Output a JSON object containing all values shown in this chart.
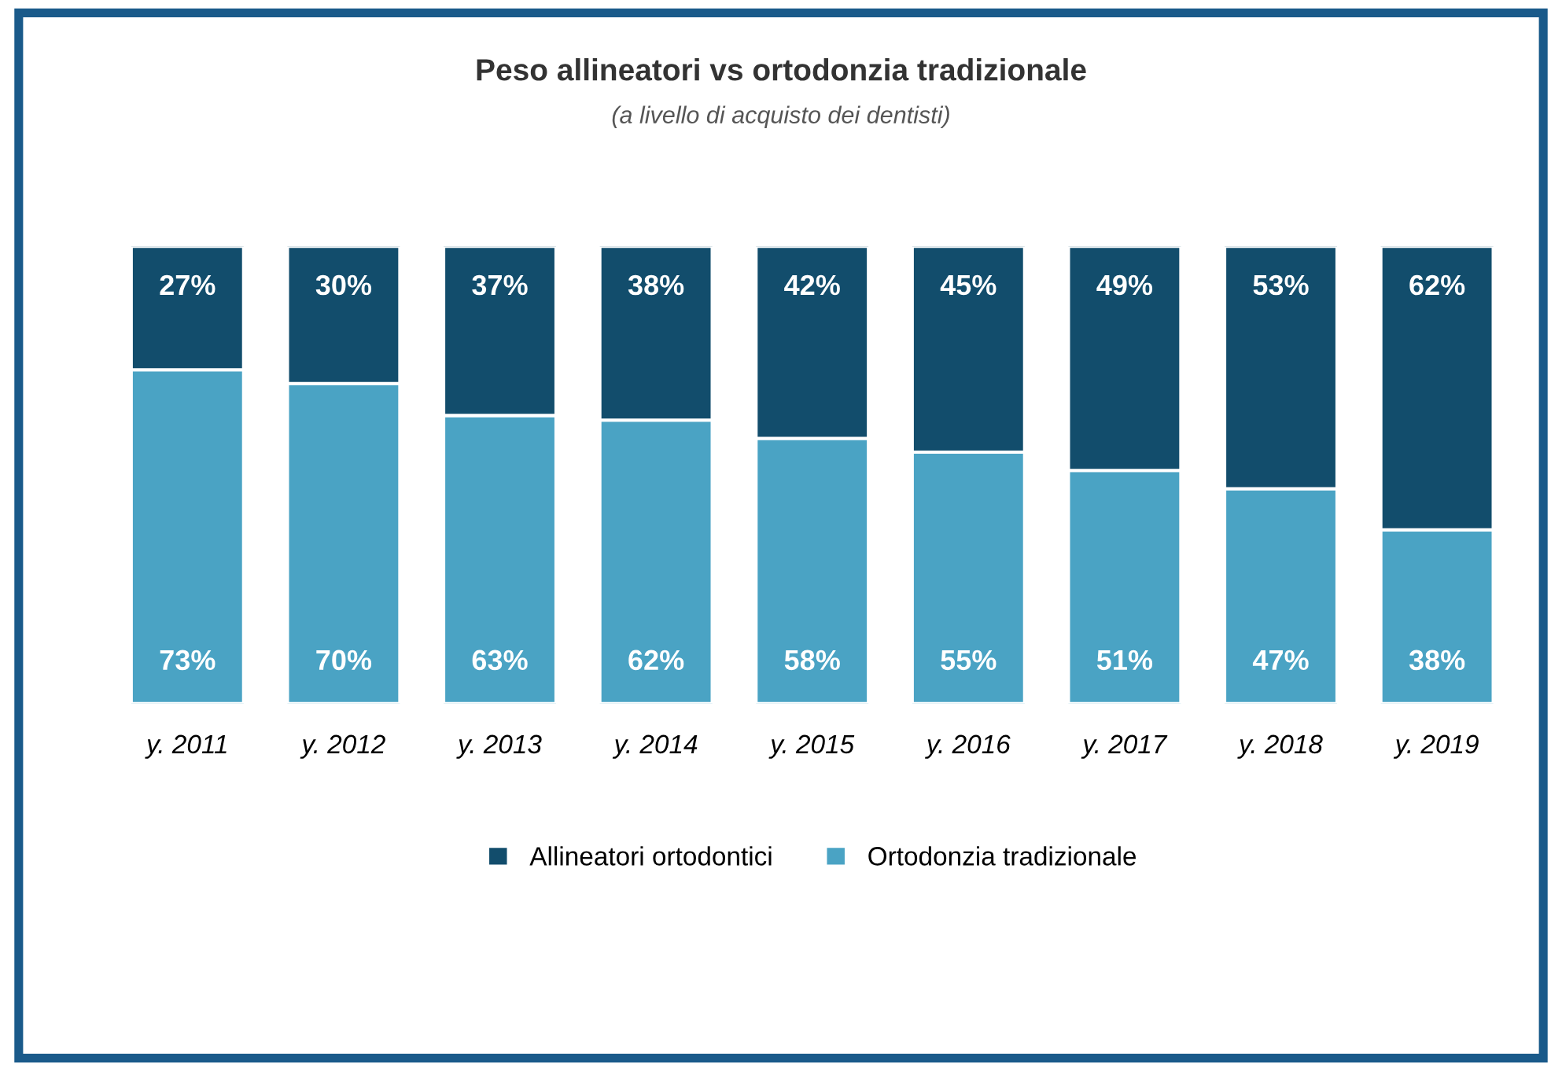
{
  "chart_data": {
    "type": "bar",
    "title": "Peso allineatori vs ortodonzia tradizionale",
    "subtitle": "(a livello di acquisto dei dentisti)",
    "categories": [
      "y. 2011",
      "y. 2012",
      "y. 2013",
      "y. 2014",
      "y. 2015",
      "y. 2016",
      "y. 2017",
      "y. 2018",
      "y. 2019"
    ],
    "stacked": true,
    "legend": "bottom",
    "tick_labels": "x",
    "grid": false,
    "series": [
      {
        "name": "Ortodonzia tradizionale",
        "color": "#4aa3c4",
        "values": [
          73,
          70,
          63,
          62,
          58,
          55,
          51,
          47,
          38
        ],
        "value_labels": [
          "73%",
          "70%",
          "63%",
          "62%",
          "58%",
          "55%",
          "51%",
          "47%",
          "38%"
        ]
      },
      {
        "name": "Allineatori ortodontici",
        "color": "#124d6c",
        "values": [
          27,
          30,
          37,
          38,
          42,
          45,
          49,
          53,
          62
        ],
        "value_labels": [
          "27%",
          "30%",
          "37%",
          "38%",
          "42%",
          "45%",
          "49%",
          "53%",
          "62%"
        ]
      }
    ]
  }
}
